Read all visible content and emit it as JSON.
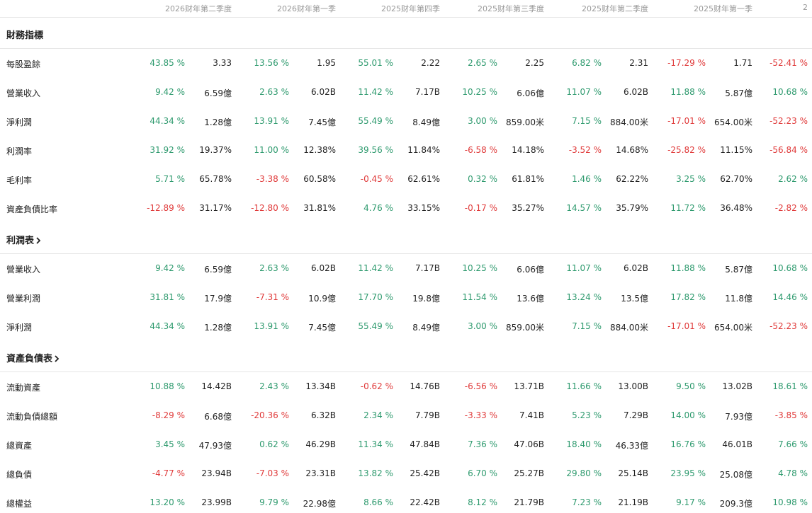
{
  "colors": {
    "positive": "#2e9a6e",
    "negative": "#e03a3a",
    "muted": "#999999"
  },
  "periods": [
    "2026财年第二季度",
    "2026财年第一季",
    "2025财年第四季",
    "2025财年第三季度",
    "2025财年第二季度",
    "2025财年第一季",
    "2"
  ],
  "sections": [
    {
      "title": "財務指標",
      "link": false,
      "rows": [
        {
          "label": "每股盈餘",
          "cells": [
            [
              "43.85 %",
              "3.33"
            ],
            [
              "13.56 %",
              "1.95"
            ],
            [
              "55.01 %",
              "2.22"
            ],
            [
              "2.65 %",
              "2.25"
            ],
            [
              "6.82 %",
              "2.31"
            ],
            [
              "-17.29 %",
              "1.71"
            ],
            [
              "-52.41 %",
              ""
            ]
          ]
        },
        {
          "label": "營業收入",
          "cells": [
            [
              "9.42 %",
              "6.59億"
            ],
            [
              "2.63 %",
              "6.02B"
            ],
            [
              "11.42 %",
              "7.17B"
            ],
            [
              "10.25 %",
              "6.06億"
            ],
            [
              "11.07 %",
              "6.02B"
            ],
            [
              "11.88 %",
              "5.87億"
            ],
            [
              "10.68 %",
              ""
            ]
          ]
        },
        {
          "label": "淨利潤",
          "cells": [
            [
              "44.34 %",
              "1.28億"
            ],
            [
              "13.91 %",
              "7.45億"
            ],
            [
              "55.49 %",
              "8.49億"
            ],
            [
              "3.00 %",
              "859.00米"
            ],
            [
              "7.15 %",
              "884.00米"
            ],
            [
              "-17.01 %",
              "654.00米"
            ],
            [
              "-52.23 %",
              ""
            ]
          ]
        },
        {
          "label": "利潤率",
          "cells": [
            [
              "31.92 %",
              "19.37%"
            ],
            [
              "11.00 %",
              "12.38%"
            ],
            [
              "39.56 %",
              "11.84%"
            ],
            [
              "-6.58 %",
              "14.18%"
            ],
            [
              "-3.52 %",
              "14.68%"
            ],
            [
              "-25.82 %",
              "11.15%"
            ],
            [
              "-56.84 %",
              ""
            ]
          ]
        },
        {
          "label": "毛利率",
          "cells": [
            [
              "5.71 %",
              "65.78%"
            ],
            [
              "-3.38 %",
              "60.58%"
            ],
            [
              "-0.45 %",
              "62.61%"
            ],
            [
              "0.32 %",
              "61.81%"
            ],
            [
              "1.46 %",
              "62.22%"
            ],
            [
              "3.25 %",
              "62.70%"
            ],
            [
              "2.62 %",
              ""
            ]
          ]
        },
        {
          "label": "資產負債比率",
          "cells": [
            [
              "-12.89 %",
              "31.17%"
            ],
            [
              "-12.80 %",
              "31.81%"
            ],
            [
              "4.76 %",
              "33.15%"
            ],
            [
              "-0.17 %",
              "35.27%"
            ],
            [
              "14.57 %",
              "35.79%"
            ],
            [
              "11.72 %",
              "36.48%"
            ],
            [
              "-2.82 %",
              ""
            ]
          ]
        }
      ]
    },
    {
      "title": "利潤表",
      "link": true,
      "rows": [
        {
          "label": "營業收入",
          "cells": [
            [
              "9.42 %",
              "6.59億"
            ],
            [
              "2.63 %",
              "6.02B"
            ],
            [
              "11.42 %",
              "7.17B"
            ],
            [
              "10.25 %",
              "6.06億"
            ],
            [
              "11.07 %",
              "6.02B"
            ],
            [
              "11.88 %",
              "5.87億"
            ],
            [
              "10.68 %",
              ""
            ]
          ]
        },
        {
          "label": "營業利潤",
          "cells": [
            [
              "31.81 %",
              "17.9億"
            ],
            [
              "-7.31 %",
              "10.9億"
            ],
            [
              "17.70 %",
              "19.8億"
            ],
            [
              "11.54 %",
              "13.6億"
            ],
            [
              "13.24 %",
              "13.5億"
            ],
            [
              "17.82 %",
              "11.8億"
            ],
            [
              "14.46 %",
              ""
            ]
          ]
        },
        {
          "label": "淨利潤",
          "cells": [
            [
              "44.34 %",
              "1.28億"
            ],
            [
              "13.91 %",
              "7.45億"
            ],
            [
              "55.49 %",
              "8.49億"
            ],
            [
              "3.00 %",
              "859.00米"
            ],
            [
              "7.15 %",
              "884.00米"
            ],
            [
              "-17.01 %",
              "654.00米"
            ],
            [
              "-52.23 %",
              ""
            ]
          ]
        }
      ]
    },
    {
      "title": "資產負債表",
      "link": true,
      "rows": [
        {
          "label": "流動資產",
          "cells": [
            [
              "10.88 %",
              "14.42B"
            ],
            [
              "2.43 %",
              "13.34B"
            ],
            [
              "-0.62 %",
              "14.76B"
            ],
            [
              "-6.56 %",
              "13.71B"
            ],
            [
              "11.66 %",
              "13.00B"
            ],
            [
              "9.50 %",
              "13.02B"
            ],
            [
              "18.61 %",
              ""
            ]
          ]
        },
        {
          "label": "流動負債總額",
          "cells": [
            [
              "-8.29 %",
              "6.68億"
            ],
            [
              "-20.36 %",
              "6.32B"
            ],
            [
              "2.34 %",
              "7.79B"
            ],
            [
              "-3.33 %",
              "7.41B"
            ],
            [
              "5.23 %",
              "7.29B"
            ],
            [
              "14.00 %",
              "7.93億"
            ],
            [
              "-3.85 %",
              ""
            ]
          ]
        },
        {
          "label": "總資產",
          "cells": [
            [
              "3.45 %",
              "47.93億"
            ],
            [
              "0.62 %",
              "46.29B"
            ],
            [
              "11.34 %",
              "47.84B"
            ],
            [
              "7.36 %",
              "47.06B"
            ],
            [
              "18.40 %",
              "46.33億"
            ],
            [
              "16.76 %",
              "46.01B"
            ],
            [
              "7.66 %",
              ""
            ]
          ]
        },
        {
          "label": "總負債",
          "cells": [
            [
              "-4.77 %",
              "23.94B"
            ],
            [
              "-7.03 %",
              "23.31B"
            ],
            [
              "13.82 %",
              "25.42B"
            ],
            [
              "6.70 %",
              "25.27B"
            ],
            [
              "29.80 %",
              "25.14B"
            ],
            [
              "23.95 %",
              "25.08億"
            ],
            [
              "4.78 %",
              ""
            ]
          ]
        },
        {
          "label": "總權益",
          "cells": [
            [
              "13.20 %",
              "23.99B"
            ],
            [
              "9.79 %",
              "22.98億"
            ],
            [
              "8.66 %",
              "22.42B"
            ],
            [
              "8.12 %",
              "21.79B"
            ],
            [
              "7.23 %",
              "21.19B"
            ],
            [
              "9.17 %",
              "209.3億"
            ],
            [
              "10.98 %",
              ""
            ]
          ]
        }
      ]
    }
  ]
}
